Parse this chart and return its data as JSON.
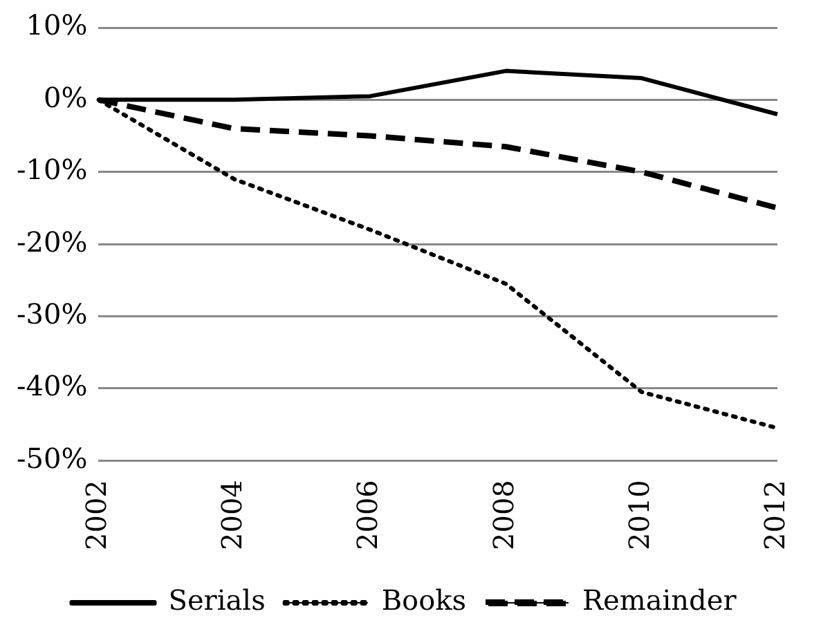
{
  "chart_data": {
    "type": "line",
    "categories": [
      "2002",
      "2004",
      "2006",
      "2008",
      "2010",
      "2012"
    ],
    "series": [
      {
        "name": "Serials",
        "color": "#000000",
        "line_style": "solid",
        "values": [
          0,
          0,
          0.5,
          4,
          3,
          -2
        ]
      },
      {
        "name": "Books",
        "color": "#000000",
        "line_style": "dotted",
        "values": [
          0,
          -11,
          -18,
          -25.5,
          -40.5,
          -45.5
        ]
      },
      {
        "name": "Remainder",
        "color": "#000000",
        "line_style": "dashed",
        "values": [
          0,
          -4,
          -5,
          -6.5,
          -10,
          -15
        ]
      }
    ],
    "ylim": [
      -50,
      10
    ],
    "yticks": [
      {
        "value": -50,
        "label": "-50%"
      },
      {
        "value": -40,
        "label": "-40%"
      },
      {
        "value": -30,
        "label": "-30%"
      },
      {
        "value": -20,
        "label": "-20%"
      },
      {
        "value": -10,
        "label": "-10%"
      },
      {
        "value": 0,
        "label": "0%"
      },
      {
        "value": 10,
        "label": "10%"
      }
    ],
    "grid": "y",
    "legend": "bottom",
    "marker": "none"
  }
}
